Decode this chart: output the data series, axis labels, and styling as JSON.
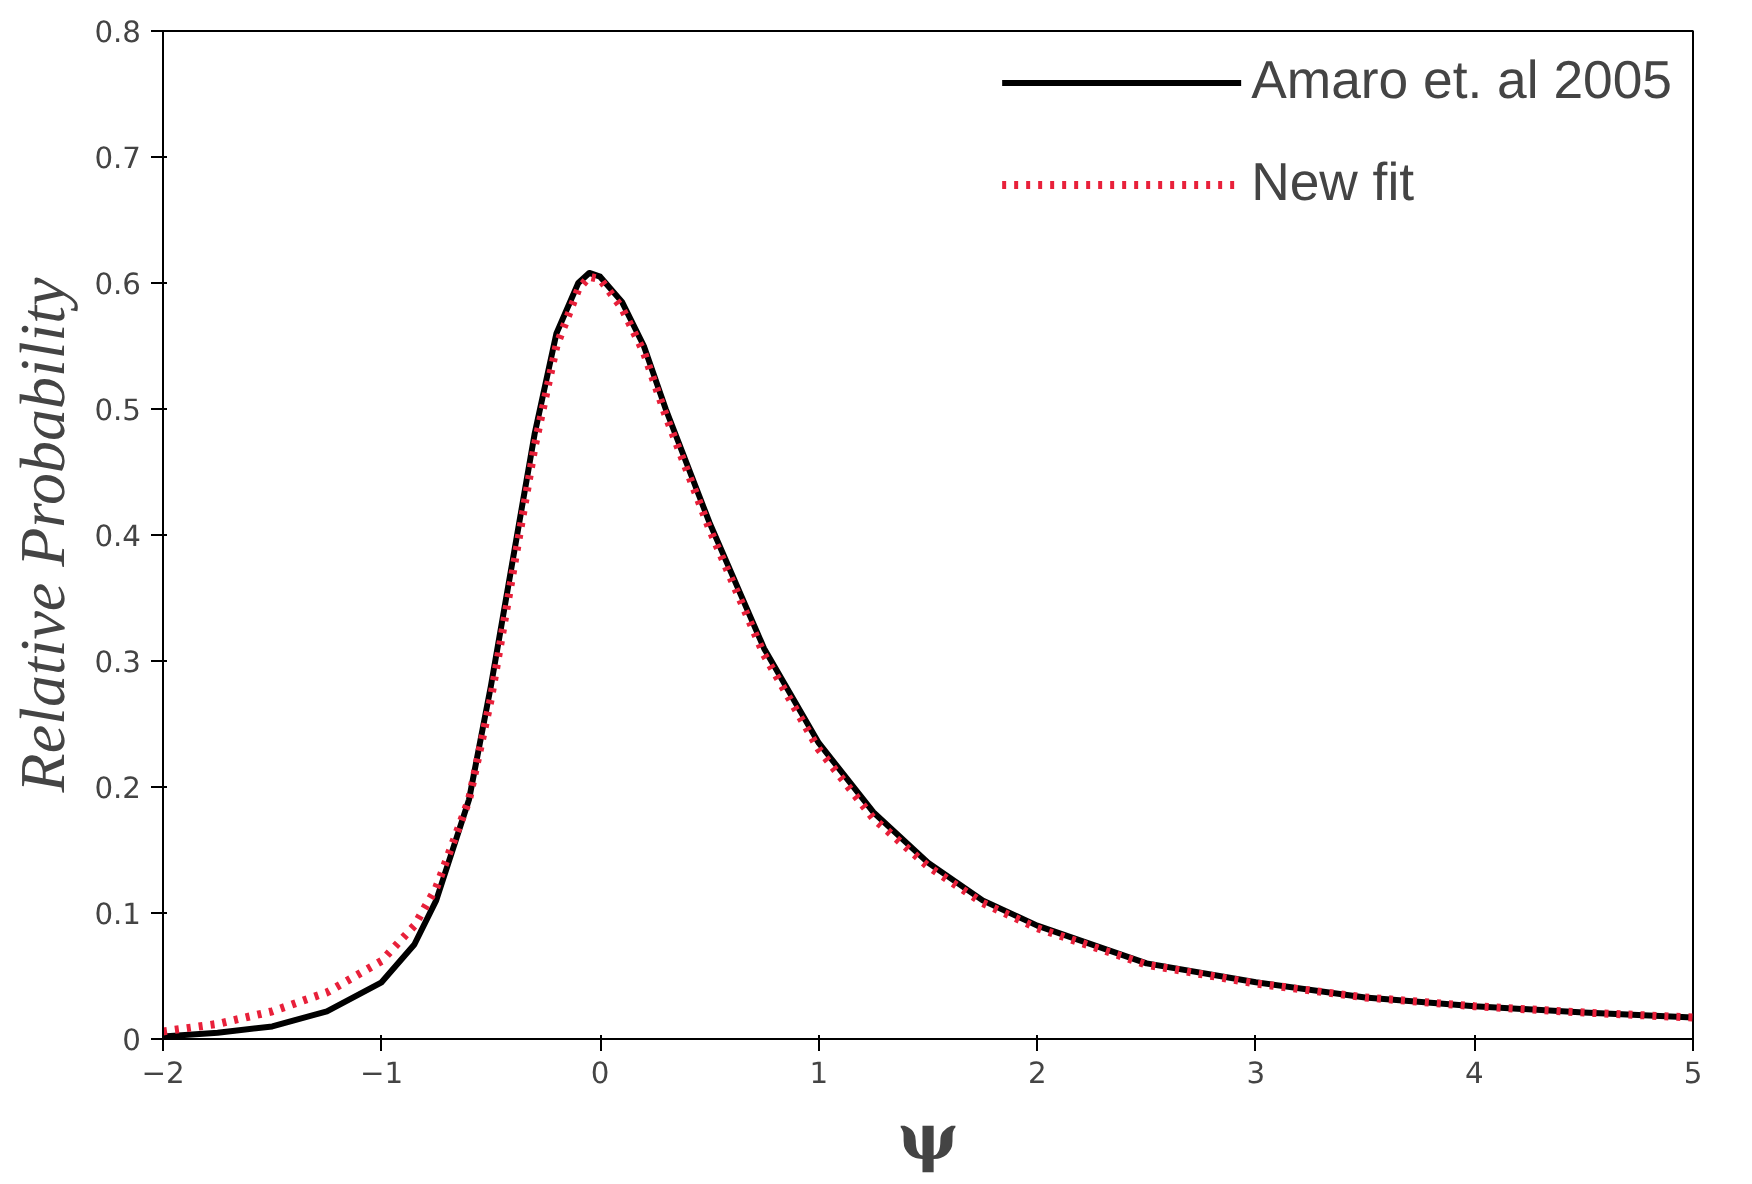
{
  "chart_data": {
    "type": "line",
    "xlabel": "ψ",
    "ylabel": "Relative Probability",
    "x": [
      -2,
      -1.75,
      -1.5,
      -1.25,
      -1,
      -0.85,
      -0.75,
      -0.6,
      -0.5,
      -0.4,
      -0.3,
      -0.2,
      -0.1,
      -0.05,
      0,
      0.1,
      0.2,
      0.3,
      0.5,
      0.75,
      1,
      1.25,
      1.5,
      1.75,
      2,
      2.5,
      3,
      3.5,
      4,
      4.5,
      5
    ],
    "series": [
      {
        "name": "Amaro et. al 2005",
        "color": "#000000",
        "line_style": "solid",
        "values": [
          0.002,
          0.005,
          0.01,
          0.022,
          0.045,
          0.075,
          0.11,
          0.19,
          0.28,
          0.38,
          0.48,
          0.56,
          0.6,
          0.608,
          0.605,
          0.585,
          0.55,
          0.5,
          0.41,
          0.31,
          0.235,
          0.18,
          0.14,
          0.11,
          0.09,
          0.06,
          0.045,
          0.033,
          0.026,
          0.021,
          0.017
        ]
      },
      {
        "name": "New fit",
        "color": "#e8203a",
        "line_style": "dotted",
        "values": [
          0.006,
          0.012,
          0.022,
          0.037,
          0.062,
          0.09,
          0.12,
          0.19,
          0.27,
          0.37,
          0.47,
          0.55,
          0.595,
          0.605,
          0.603,
          0.58,
          0.545,
          0.495,
          0.405,
          0.305,
          0.23,
          0.175,
          0.137,
          0.108,
          0.088,
          0.059,
          0.044,
          0.033,
          0.026,
          0.021,
          0.017
        ]
      }
    ],
    "xlim": [
      -2,
      5
    ],
    "ylim": [
      0,
      0.8
    ],
    "xticks": [
      -2,
      -1,
      0,
      1,
      2,
      3,
      4,
      5
    ],
    "yticks": [
      0,
      0.1,
      0.2,
      0.3,
      0.4,
      0.5,
      0.6,
      0.7,
      0.8
    ],
    "grid": false,
    "legend": "top right"
  }
}
